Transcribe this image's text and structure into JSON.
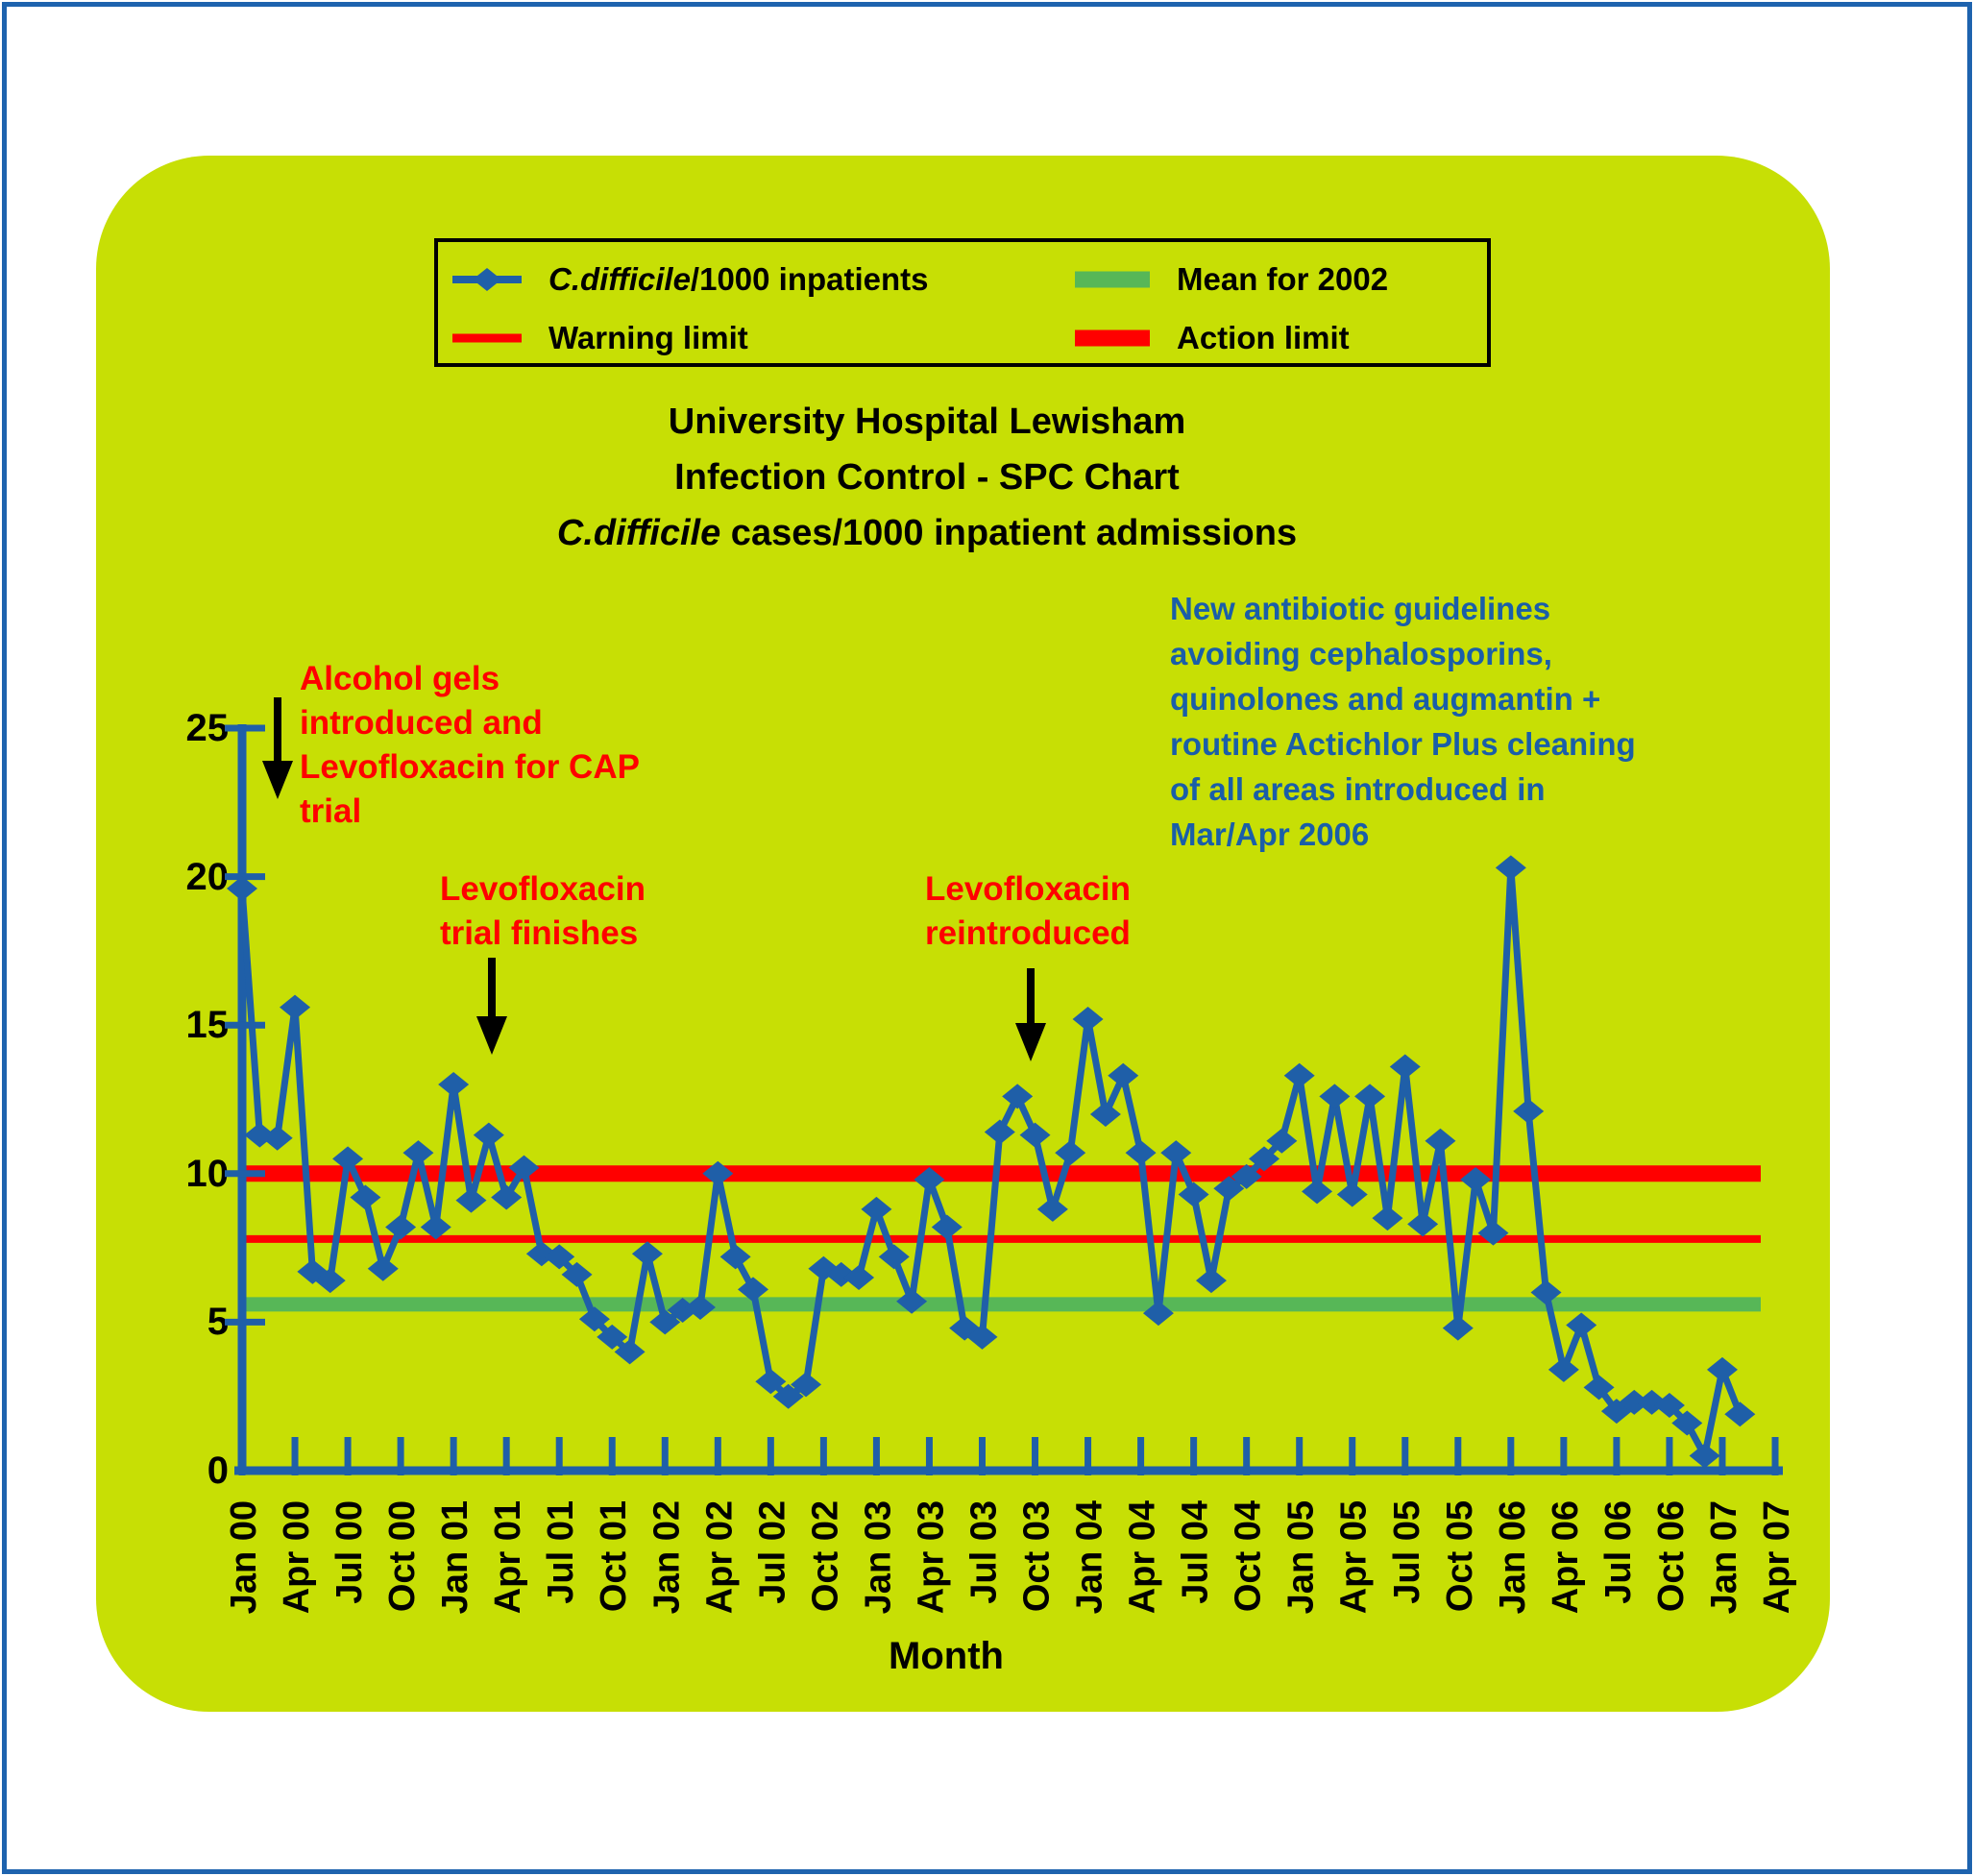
{
  "legend": {
    "series_label_italic": "C.difficile",
    "series_label_rest": "/1000 inpatients",
    "warning_label": "Warning limit",
    "mean_label": "Mean for 2002",
    "action_label": "Action limit"
  },
  "title": {
    "line1": "University Hospital Lewisham",
    "line2": "Infection Control - SPC Chart",
    "line3_italic": "C.difficile",
    "line3_rest": " cases/1000 inpatient admissions"
  },
  "annotations": {
    "alcohol": {
      "lines": [
        "Alcohol gels",
        "introduced and",
        "Levofloxacin for CAP",
        "trial"
      ]
    },
    "trial_finishes": {
      "lines": [
        "Levofloxacin",
        "trial finishes"
      ]
    },
    "reintroduced": {
      "lines": [
        "Levofloxacin",
        "reintroduced"
      ]
    },
    "guidelines": {
      "lines": [
        "New antibiotic guidelines",
        "avoiding cephalosporins,",
        "quinolones and augmantin +",
        "routine Actichlor Plus cleaning",
        "of all areas introduced in",
        "Mar/Apr 2006"
      ]
    }
  },
  "xaxis_title": "Month",
  "chart_data": {
    "type": "line",
    "title": "University Hospital Lewisham Infection Control - SPC Chart C.difficile cases/1000 inpatient admissions",
    "xlabel": "Month",
    "ylabel": "",
    "ylim": [
      0,
      25
    ],
    "yticks": [
      0,
      5,
      10,
      15,
      20,
      25
    ],
    "x_start_month": "Jan 00",
    "x_end_month": "Apr 07",
    "x_tick_labels": [
      "Jan 00",
      "Apr 00",
      "Jul 00",
      "Oct 00",
      "Jan 01",
      "Apr 01",
      "Jul 01",
      "Oct 01",
      "Jan 02",
      "Apr 02",
      "Jul 02",
      "Oct 02",
      "Jan 03",
      "Apr 03",
      "Jul 03",
      "Oct 03",
      "Jan 04",
      "Apr 04",
      "Jul 04",
      "Oct 04",
      "Jan 05",
      "Apr 05",
      "Jul 05",
      "Oct 05",
      "Jan 06",
      "Apr 06",
      "Jul 06",
      "Oct 06",
      "Jan 07",
      "Apr 07"
    ],
    "series": [
      {
        "name": "C.difficile/1000 inpatients",
        "values": [
          19.6,
          11.3,
          11.2,
          15.6,
          6.7,
          6.4,
          10.5,
          9.2,
          6.8,
          8.2,
          10.7,
          8.2,
          13.0,
          9.1,
          11.3,
          9.2,
          10.2,
          7.3,
          7.2,
          6.6,
          5.1,
          4.5,
          4.0,
          7.3,
          5.0,
          5.4,
          5.5,
          10.0,
          7.2,
          6.1,
          3.0,
          2.5,
          2.9,
          6.8,
          6.6,
          6.5,
          8.8,
          7.2,
          5.7,
          9.8,
          8.2,
          4.8,
          4.5,
          11.4,
          12.6,
          11.3,
          8.8,
          10.7,
          15.2,
          12.0,
          13.3,
          10.7,
          5.3,
          10.7,
          9.3,
          6.4,
          9.5,
          9.9,
          10.5,
          11.1,
          13.3,
          9.4,
          12.6,
          9.3,
          12.6,
          8.5,
          13.6,
          8.3,
          11.1,
          4.8,
          9.8,
          8.0,
          20.3,
          12.1,
          6.0,
          3.4,
          4.9,
          2.8,
          2.0,
          2.3,
          2.3,
          2.2,
          1.6,
          0.5,
          3.4,
          1.9
        ]
      }
    ],
    "reference_lines": {
      "action_limit": 10,
      "warning_limit": 7.8,
      "mean_2002": 5.6
    },
    "colors": {
      "series_blue": "#1f5fa8",
      "warning_red": "#ff0000",
      "action_red": "#ff0000",
      "mean_green": "#57b757",
      "panel_background": "#c7df05",
      "frame_blue": "#1e63ae",
      "annotation_red": "#ff0000",
      "annotation_blue": "#1a5ea8",
      "arrow_black": "#000000"
    },
    "legend_position": "top",
    "grid": false
  }
}
